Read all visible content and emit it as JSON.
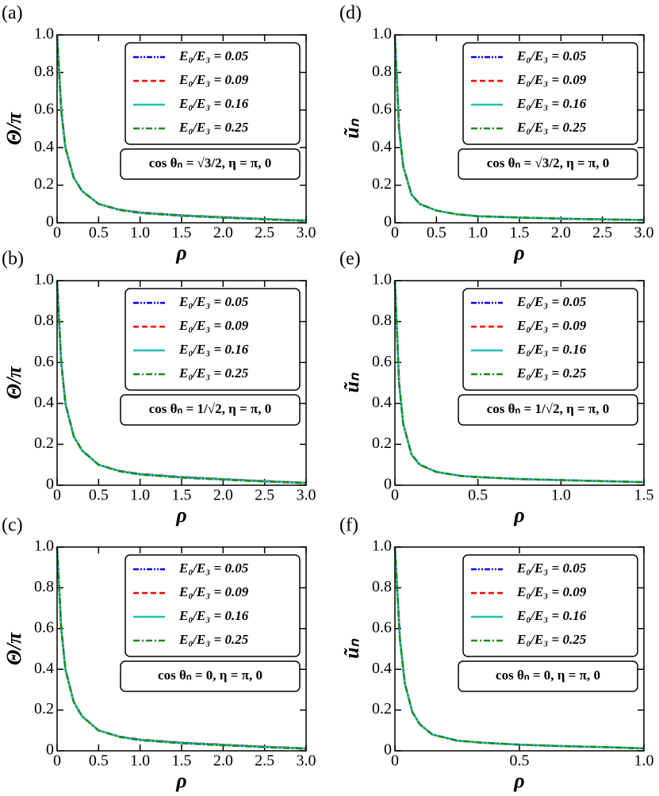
{
  "chart_data": [
    {
      "type": "line",
      "title": "(a)",
      "y_label": "Θ/π",
      "x_label": "ρ",
      "annotation": "cos θₙ = √3/2, η = π, 0",
      "x": [
        0,
        0.05,
        0.1,
        0.2,
        0.3,
        0.5,
        0.75,
        1.0,
        1.5,
        2.0,
        2.5,
        3.0
      ],
      "series": [
        {
          "name": "E₀/E₃ = 0.05",
          "color": "#0000ff",
          "values": [
            1.0,
            0.6,
            0.4,
            0.24,
            0.17,
            0.1,
            0.07,
            0.055,
            0.04,
            0.03,
            0.02,
            0.012
          ]
        },
        {
          "name": "E₀/E₃ = 0.09",
          "color": "#ff0000",
          "values": [
            1.0,
            0.6,
            0.4,
            0.24,
            0.17,
            0.1,
            0.07,
            0.054,
            0.039,
            0.029,
            0.02,
            0.012
          ]
        },
        {
          "name": "E₀/E₃ = 0.16",
          "color": "#20c0b0",
          "values": [
            1.0,
            0.6,
            0.4,
            0.24,
            0.17,
            0.1,
            0.069,
            0.053,
            0.038,
            0.028,
            0.019,
            0.011
          ]
        },
        {
          "name": "E₀/E₃ = 0.25",
          "color": "#1a8a1a",
          "values": [
            1.0,
            0.6,
            0.4,
            0.24,
            0.17,
            0.1,
            0.068,
            0.052,
            0.037,
            0.027,
            0.018,
            0.01
          ]
        }
      ],
      "xlim": [
        0,
        3
      ],
      "xticks": [
        0,
        0.5,
        {
          "value": 1,
          "label": "1.0"
        },
        1.5,
        {
          "value": 2,
          "label": "2.0"
        },
        2.5,
        {
          "value": 3,
          "label": "3.0"
        }
      ],
      "ylim": [
        0,
        1
      ],
      "yticks": [
        0,
        0.2,
        0.4,
        0.6,
        0.8,
        {
          "value": 1,
          "label": "1.0"
        }
      ]
    },
    {
      "type": "line",
      "title": "(b)",
      "y_label": "Θ/π",
      "x_label": "ρ",
      "annotation": "cos θₙ = 1/√2, η = π, 0",
      "x": [
        0,
        0.05,
        0.1,
        0.2,
        0.3,
        0.5,
        0.75,
        1.0,
        1.5,
        2.0,
        2.5,
        3.0
      ],
      "series": [
        {
          "name": "E₀/E₃ = 0.05",
          "color": "#0000ff",
          "values": [
            1.0,
            0.6,
            0.4,
            0.24,
            0.17,
            0.1,
            0.07,
            0.055,
            0.04,
            0.03,
            0.02,
            0.012
          ]
        },
        {
          "name": "E₀/E₃ = 0.09",
          "color": "#ff0000",
          "values": [
            1.0,
            0.6,
            0.4,
            0.24,
            0.17,
            0.1,
            0.07,
            0.054,
            0.039,
            0.029,
            0.02,
            0.012
          ]
        },
        {
          "name": "E₀/E₃ = 0.16",
          "color": "#20c0b0",
          "values": [
            1.0,
            0.6,
            0.4,
            0.24,
            0.17,
            0.1,
            0.069,
            0.053,
            0.038,
            0.028,
            0.019,
            0.011
          ]
        },
        {
          "name": "E₀/E₃ = 0.25",
          "color": "#1a8a1a",
          "values": [
            1.0,
            0.6,
            0.4,
            0.24,
            0.17,
            0.1,
            0.068,
            0.052,
            0.037,
            0.027,
            0.018,
            0.01
          ]
        }
      ],
      "xlim": [
        0,
        3
      ],
      "xticks": [
        0,
        0.5,
        {
          "value": 1,
          "label": "1.0"
        },
        1.5,
        {
          "value": 2,
          "label": "2.0"
        },
        2.5,
        {
          "value": 3,
          "label": "3.0"
        }
      ],
      "ylim": [
        0,
        1
      ],
      "yticks": [
        0,
        0.2,
        0.4,
        0.6,
        0.8,
        {
          "value": 1,
          "label": "1.0"
        }
      ]
    },
    {
      "type": "line",
      "title": "(c)",
      "y_label": "Θ/π",
      "x_label": "ρ",
      "annotation": "cos θₙ = 0, η = π, 0",
      "x": [
        0,
        0.05,
        0.1,
        0.2,
        0.3,
        0.5,
        0.75,
        1.0,
        1.5,
        2.0,
        2.5,
        3.0
      ],
      "series": [
        {
          "name": "E₀/E₃ = 0.05",
          "color": "#0000ff",
          "values": [
            1.0,
            0.6,
            0.4,
            0.24,
            0.17,
            0.1,
            0.07,
            0.055,
            0.04,
            0.03,
            0.02,
            0.012
          ]
        },
        {
          "name": "E₀/E₃ = 0.09",
          "color": "#ff0000",
          "values": [
            1.0,
            0.6,
            0.4,
            0.24,
            0.17,
            0.1,
            0.07,
            0.054,
            0.039,
            0.029,
            0.02,
            0.012
          ]
        },
        {
          "name": "E₀/E₃ = 0.16",
          "color": "#20c0b0",
          "values": [
            1.0,
            0.6,
            0.4,
            0.24,
            0.17,
            0.1,
            0.069,
            0.053,
            0.038,
            0.028,
            0.019,
            0.011
          ]
        },
        {
          "name": "E₀/E₃ = 0.25",
          "color": "#1a8a1a",
          "values": [
            1.0,
            0.6,
            0.4,
            0.24,
            0.17,
            0.1,
            0.068,
            0.052,
            0.037,
            0.027,
            0.018,
            0.01
          ]
        }
      ],
      "xlim": [
        0,
        3
      ],
      "xticks": [
        0,
        0.5,
        {
          "value": 1,
          "label": "1.0"
        },
        1.5,
        {
          "value": 2,
          "label": "2.0"
        },
        2.5,
        {
          "value": 3,
          "label": "3.0"
        }
      ],
      "ylim": [
        0,
        1
      ],
      "yticks": [
        0,
        0.2,
        0.4,
        0.6,
        0.8,
        {
          "value": 1,
          "label": "1.0"
        }
      ]
    },
    {
      "type": "line",
      "title": "(d)",
      "y_label": "ũₙ",
      "x_label": "ρ",
      "annotation": "cos θₙ = √3/2, η = π, 0",
      "x": [
        0,
        0.05,
        0.1,
        0.2,
        0.3,
        0.5,
        0.75,
        1.0,
        1.5,
        2.0,
        2.5,
        3.0
      ],
      "series": [
        {
          "name": "E₀/E₃ = 0.05",
          "color": "#0000ff",
          "values": [
            1.0,
            0.5,
            0.3,
            0.15,
            0.1,
            0.065,
            0.045,
            0.035,
            0.028,
            0.022,
            0.018,
            0.015
          ]
        },
        {
          "name": "E₀/E₃ = 0.09",
          "color": "#ff0000",
          "values": [
            1.0,
            0.5,
            0.3,
            0.15,
            0.1,
            0.065,
            0.045,
            0.035,
            0.028,
            0.022,
            0.018,
            0.015
          ]
        },
        {
          "name": "E₀/E₃ = 0.16",
          "color": "#20c0b0",
          "values": [
            1.0,
            0.5,
            0.3,
            0.15,
            0.1,
            0.065,
            0.045,
            0.035,
            0.028,
            0.022,
            0.018,
            0.015
          ]
        },
        {
          "name": "E₀/E₃ = 0.25",
          "color": "#1a8a1a",
          "values": [
            1.0,
            0.5,
            0.3,
            0.15,
            0.1,
            0.065,
            0.045,
            0.035,
            0.028,
            0.022,
            0.018,
            0.015
          ]
        }
      ],
      "xlim": [
        0,
        3
      ],
      "xticks": [
        0,
        0.5,
        {
          "value": 1,
          "label": "1.0"
        },
        1.5,
        {
          "value": 2,
          "label": "2.0"
        },
        2.5,
        {
          "value": 3,
          "label": "3.0"
        }
      ],
      "ylim": [
        0,
        1
      ],
      "yticks": [
        0,
        0.2,
        0.4,
        0.6,
        0.8,
        {
          "value": 1,
          "label": "1.0"
        }
      ]
    },
    {
      "type": "line",
      "title": "(e)",
      "y_label": "ũₙ",
      "x_label": "ρ",
      "annotation": "cos θₙ = 1/√2, η = π, 0",
      "x": [
        0,
        0.025,
        0.05,
        0.1,
        0.15,
        0.25,
        0.4,
        0.5,
        0.75,
        1.0,
        1.25,
        1.5
      ],
      "series": [
        {
          "name": "E₀/E₃ = 0.05",
          "color": "#0000ff",
          "values": [
            1.0,
            0.5,
            0.3,
            0.15,
            0.1,
            0.065,
            0.045,
            0.04,
            0.03,
            0.025,
            0.02,
            0.015
          ]
        },
        {
          "name": "E₀/E₃ = 0.09",
          "color": "#ff0000",
          "values": [
            1.0,
            0.5,
            0.3,
            0.15,
            0.1,
            0.065,
            0.045,
            0.04,
            0.03,
            0.025,
            0.02,
            0.015
          ]
        },
        {
          "name": "E₀/E₃ = 0.16",
          "color": "#20c0b0",
          "values": [
            1.0,
            0.5,
            0.3,
            0.15,
            0.1,
            0.065,
            0.045,
            0.04,
            0.03,
            0.025,
            0.02,
            0.015
          ]
        },
        {
          "name": "E₀/E₃ = 0.25",
          "color": "#1a8a1a",
          "values": [
            1.0,
            0.5,
            0.3,
            0.15,
            0.1,
            0.065,
            0.045,
            0.04,
            0.03,
            0.025,
            0.02,
            0.015
          ]
        }
      ],
      "xlim": [
        0,
        1.5
      ],
      "xticks": [
        0,
        0.5,
        {
          "value": 1,
          "label": "1.0"
        },
        1.5
      ],
      "ylim": [
        0,
        1
      ],
      "yticks": [
        0,
        0.2,
        0.4,
        0.6,
        0.8,
        {
          "value": 1,
          "label": "1.0"
        }
      ]
    },
    {
      "type": "line",
      "title": "(f)",
      "y_label": "ũₙ",
      "x_label": "ρ",
      "annotation": "cos θₙ = 0, η = π, 0",
      "x": [
        0,
        0.02,
        0.04,
        0.07,
        0.1,
        0.15,
        0.25,
        0.35,
        0.5,
        0.7,
        0.85,
        1.0
      ],
      "series": [
        {
          "name": "E₀/E₃ = 0.05",
          "color": "#0000ff",
          "values": [
            1.0,
            0.55,
            0.33,
            0.19,
            0.13,
            0.08,
            0.05,
            0.04,
            0.03,
            0.022,
            0.018,
            0.012
          ]
        },
        {
          "name": "E₀/E₃ = 0.09",
          "color": "#ff0000",
          "values": [
            1.0,
            0.55,
            0.33,
            0.19,
            0.13,
            0.08,
            0.05,
            0.04,
            0.03,
            0.022,
            0.018,
            0.012
          ]
        },
        {
          "name": "E₀/E₃ = 0.16",
          "color": "#20c0b0",
          "values": [
            1.0,
            0.55,
            0.33,
            0.19,
            0.13,
            0.08,
            0.05,
            0.04,
            0.03,
            0.022,
            0.018,
            0.012
          ]
        },
        {
          "name": "E₀/E₃ = 0.25",
          "color": "#1a8a1a",
          "values": [
            1.0,
            0.55,
            0.33,
            0.19,
            0.13,
            0.08,
            0.05,
            0.04,
            0.03,
            0.022,
            0.018,
            0.012
          ]
        }
      ],
      "xlim": [
        0,
        1
      ],
      "xticks": [
        0,
        0.5,
        {
          "value": 1,
          "label": "1.0"
        }
      ],
      "ylim": [
        0,
        1
      ],
      "yticks": [
        0,
        0.2,
        0.4,
        0.6,
        0.8,
        {
          "value": 1,
          "label": "1.0"
        }
      ]
    }
  ]
}
